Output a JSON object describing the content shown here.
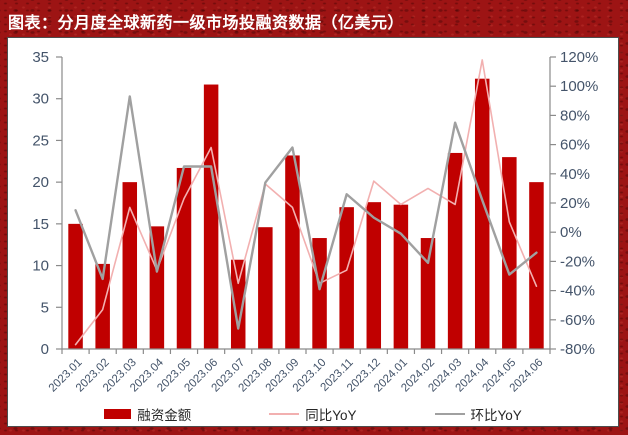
{
  "header": {
    "title": "图表：分月度全球新药一级市场投融资数据（亿美元）"
  },
  "colors": {
    "bar": "#C00000",
    "yoy_line": "#F2B0B0",
    "mom_line": "#A0A0A0",
    "axis_text": "#44546A",
    "x_label_text": "#44546A",
    "axis_line": "#8a8a8a",
    "header_bg": "#9d1414",
    "header_text": "#FFFFFF",
    "legend_text": "#262626",
    "panel_bg": "#FFFFFF"
  },
  "legend": [
    {
      "label": "融资金额",
      "type": "bar",
      "color": "#C00000",
      "thickness": 10
    },
    {
      "label": "同比YoY",
      "type": "line",
      "color": "#F2B0B0",
      "thickness": 2
    },
    {
      "label": "环比YoY",
      "type": "line",
      "color": "#A0A0A0",
      "thickness": 2.5
    }
  ],
  "chart_data": {
    "type": "bar",
    "subtype": "bar-with-two-lines",
    "title": "分月度全球新药一级市场投融资数据（亿美元）",
    "categories": [
      "2023.01",
      "2023.02",
      "2023.03",
      "2023.04",
      "2023.05",
      "2023.06",
      "2023.07",
      "2023.08",
      "2023.09",
      "2023.10",
      "2023.11",
      "2023.12",
      "2024.01",
      "2024.02",
      "2024.03",
      "2024.04",
      "2024.05",
      "2024.06"
    ],
    "series": [
      {
        "name": "融资金额",
        "type": "bar",
        "axis": "left",
        "color": "#C00000",
        "values": [
          15.0,
          10.2,
          20.0,
          14.7,
          21.7,
          31.7,
          10.7,
          14.6,
          23.2,
          13.3,
          17.0,
          17.6,
          17.3,
          13.3,
          23.5,
          32.4,
          23.0,
          20.0
        ]
      },
      {
        "name": "同比YoY",
        "type": "line",
        "axis": "right",
        "color": "#F2B0B0",
        "values": [
          -77,
          -53,
          17,
          -26,
          23,
          58,
          -35,
          33,
          17,
          -35,
          -26,
          35,
          19,
          30,
          19,
          118,
          7,
          -37
        ]
      },
      {
        "name": "环比YoY",
        "type": "line",
        "axis": "right",
        "color": "#A0A0A0",
        "values": [
          15,
          -32,
          93,
          -27,
          45,
          45,
          -66,
          34,
          58,
          -39,
          26,
          10,
          -1,
          -21,
          75,
          22,
          -29,
          -14
        ]
      }
    ],
    "left_axis": {
      "min": 0,
      "max": 35,
      "step": 5,
      "tick_labels": [
        "0",
        "5",
        "10",
        "15",
        "20",
        "25",
        "30",
        "35"
      ]
    },
    "right_axis": {
      "min": -80,
      "max": 120,
      "step": 20,
      "tick_labels": [
        "-80%",
        "-60%",
        "-40%",
        "-20%",
        "0%",
        "20%",
        "40%",
        "60%",
        "80%",
        "100%",
        "120%"
      ]
    },
    "grid": false,
    "legend_position": "bottom"
  }
}
